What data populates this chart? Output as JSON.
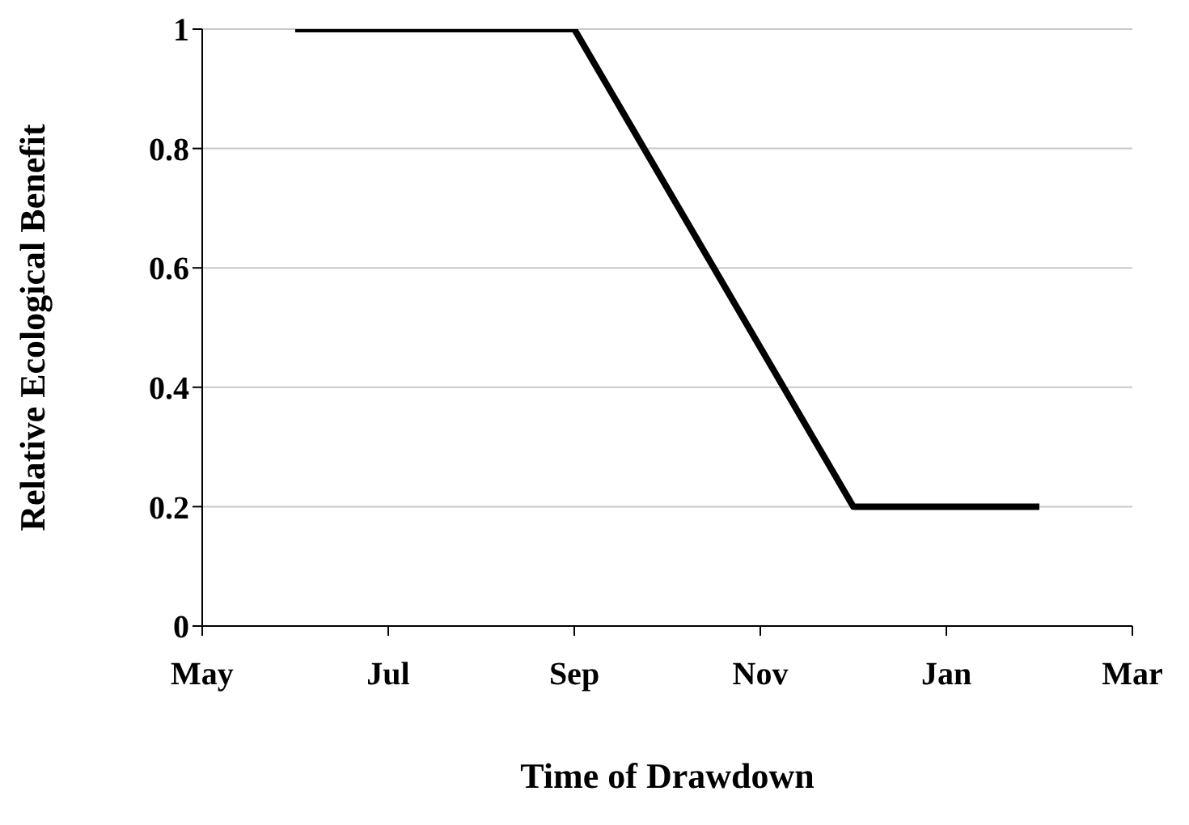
{
  "chart_data": {
    "type": "line",
    "xlabel": "Time of Drawdown",
    "ylabel": "Relative Ecological Benefit",
    "categories": [
      "May",
      null,
      "Jul",
      null,
      "Sep",
      null,
      "Nov",
      null,
      "Jan",
      null,
      "Mar"
    ],
    "series": [
      {
        "color": "#000000",
        "values": [
          null,
          1,
          null,
          null,
          1,
          null,
          null,
          0.2,
          null,
          0.2,
          null
        ]
      }
    ],
    "ylim": [
      0,
      1
    ],
    "yticks": [
      0,
      0.2,
      0.4,
      0.6,
      0.8,
      1
    ],
    "grid": "y",
    "legend": false,
    "marker": "none",
    "line_style": "solid"
  }
}
